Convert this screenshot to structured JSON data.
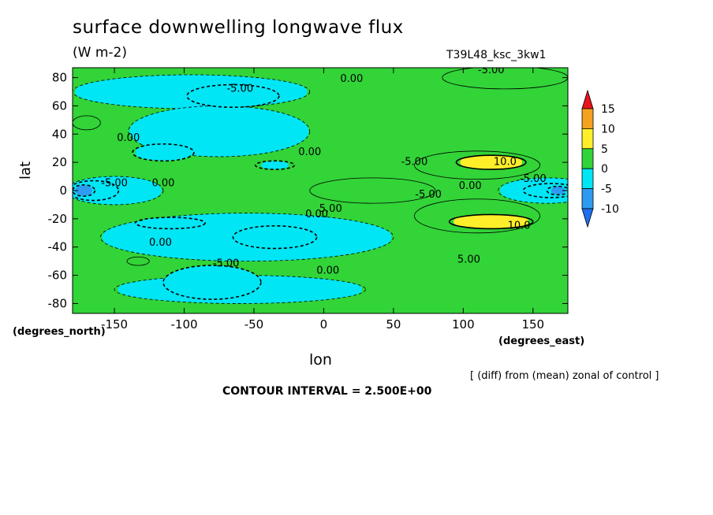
{
  "chart_data": {
    "type": "contour",
    "title": "surface downwelling longwave flux",
    "units": "(W m-2)",
    "run_label": "T39L48_ksc_3kw1",
    "xlabel": "lon",
    "ylabel": "lat",
    "x_unit_label": "(degrees_east)",
    "y_unit_label": "(degrees_north)",
    "note": "[ (diff) from (mean) zonal of control ]",
    "contour_interval_text": "CONTOUR INTERVAL = 2.500E+00",
    "xlim": [
      -180,
      175
    ],
    "ylim": [
      -87,
      87
    ],
    "x_ticks": [
      -150,
      -100,
      -50,
      0,
      50,
      100,
      150
    ],
    "x_tick_labels": [
      "-150",
      "-100",
      "-50",
      "0",
      "50",
      "100",
      "150"
    ],
    "y_ticks": [
      80,
      60,
      40,
      20,
      0,
      -20,
      -40,
      -60,
      -80
    ],
    "y_tick_labels": [
      "80",
      "60",
      "40",
      "20",
      "0",
      "-20",
      "-40",
      "-60",
      "-80"
    ],
    "colorbar": {
      "levels": [
        15,
        10,
        5,
        0,
        -5,
        -10
      ],
      "labels": [
        "15",
        "10",
        "5",
        "0",
        "-5",
        "-10"
      ],
      "bins": [
        {
          "range": [
            10,
            15
          ],
          "color": "#f4a21f"
        },
        {
          "range": [
            5,
            10
          ],
          "color": "#ffef2a"
        },
        {
          "range": [
            0,
            5
          ],
          "color": "#32d438"
        },
        {
          "range": [
            -5,
            0
          ],
          "color": "#00e6f5"
        },
        {
          "range": [
            -10,
            -5
          ],
          "color": "#2e9bf0"
        }
      ],
      "over_color": "#e8141e",
      "under_color": "#1f6ff0"
    },
    "regions": [
      {
        "level": -2.5,
        "cx": -95,
        "cy": 70,
        "rx": 85,
        "ry": 12
      },
      {
        "level": -2.5,
        "cx": -75,
        "cy": 42,
        "rx": 65,
        "ry": 18
      },
      {
        "level": -5,
        "cx": -65,
        "cy": 67,
        "rx": 33,
        "ry": 8
      },
      {
        "level": -5,
        "cx": -115,
        "cy": 27,
        "rx": 22,
        "ry": 6
      },
      {
        "level": -5,
        "cx": -35,
        "cy": 18,
        "rx": 14,
        "ry": 3
      },
      {
        "level": -2.5,
        "cx": -55,
        "cy": -33,
        "rx": 105,
        "ry": 17
      },
      {
        "level": -2.5,
        "cx": -60,
        "cy": -70,
        "rx": 90,
        "ry": 10
      },
      {
        "level": -5,
        "cx": -35,
        "cy": -33,
        "rx": 30,
        "ry": 8
      },
      {
        "level": -5,
        "cx": -110,
        "cy": -23,
        "rx": 25,
        "ry": 4
      },
      {
        "level": -5,
        "cx": -80,
        "cy": -65,
        "rx": 35,
        "ry": 12
      },
      {
        "level": -2.5,
        "cx": -150,
        "cy": 0,
        "rx": 35,
        "ry": 10
      },
      {
        "level": -5,
        "cx": -165,
        "cy": 0,
        "rx": 18,
        "ry": 7
      },
      {
        "level": -7.5,
        "cx": -172,
        "cy": 0,
        "rx": 8,
        "ry": 4
      },
      {
        "level": 2.5,
        "cx": 35,
        "cy": 0,
        "rx": 45,
        "ry": 9
      },
      {
        "level": 2.5,
        "cx": 110,
        "cy": 18,
        "rx": 45,
        "ry": 10
      },
      {
        "level": 2.5,
        "cx": 110,
        "cy": -18,
        "rx": 45,
        "ry": 12
      },
      {
        "level": 2.5,
        "cx": 130,
        "cy": 80,
        "rx": 45,
        "ry": 8
      },
      {
        "level": 2.5,
        "cx": -170,
        "cy": 48,
        "rx": 10,
        "ry": 5
      },
      {
        "level": 2.5,
        "cx": -133,
        "cy": -50,
        "rx": 8,
        "ry": 3
      },
      {
        "level": 7.5,
        "cx": 120,
        "cy": 20,
        "rx": 25,
        "ry": 5
      },
      {
        "level": 7.5,
        "cx": 120,
        "cy": -22,
        "rx": 30,
        "ry": 5
      },
      {
        "level": -2.5,
        "cx": 160,
        "cy": 0,
        "rx": 35,
        "ry": 9
      },
      {
        "level": -5,
        "cx": 163,
        "cy": 0,
        "rx": 20,
        "ry": 5
      },
      {
        "level": -7.5,
        "cx": 168,
        "cy": 0,
        "rx": 8,
        "ry": 3
      }
    ],
    "contour_labels": [
      {
        "text": "-5.00",
        "x": -60,
        "y": 72
      },
      {
        "text": "0.00",
        "x": 20,
        "y": 79
      },
      {
        "text": "-5.00",
        "x": 120,
        "y": 85
      },
      {
        "text": "0.00",
        "x": -140,
        "y": 37
      },
      {
        "text": "0.00",
        "x": -10,
        "y": 27
      },
      {
        "text": "-5.00",
        "x": 65,
        "y": 20
      },
      {
        "text": "10.0",
        "x": 130,
        "y": 20
      },
      {
        "text": "-5.00",
        "x": 150,
        "y": 8
      },
      {
        "text": "-5.00",
        "x": -150,
        "y": 5
      },
      {
        "text": "0.00",
        "x": -115,
        "y": 5
      },
      {
        "text": "0.00",
        "x": 105,
        "y": 3
      },
      {
        "text": "-5.00",
        "x": 75,
        "y": -3
      },
      {
        "text": "5.00",
        "x": 5,
        "y": -13
      },
      {
        "text": "0.00",
        "x": -5,
        "y": -17
      },
      {
        "text": "10.0",
        "x": 140,
        "y": -25
      },
      {
        "text": "0.00",
        "x": -117,
        "y": -37
      },
      {
        "text": "-5.00",
        "x": -70,
        "y": -52
      },
      {
        "text": "0.00",
        "x": 3,
        "y": -57
      },
      {
        "text": "5.00",
        "x": 104,
        "y": -49
      }
    ]
  }
}
